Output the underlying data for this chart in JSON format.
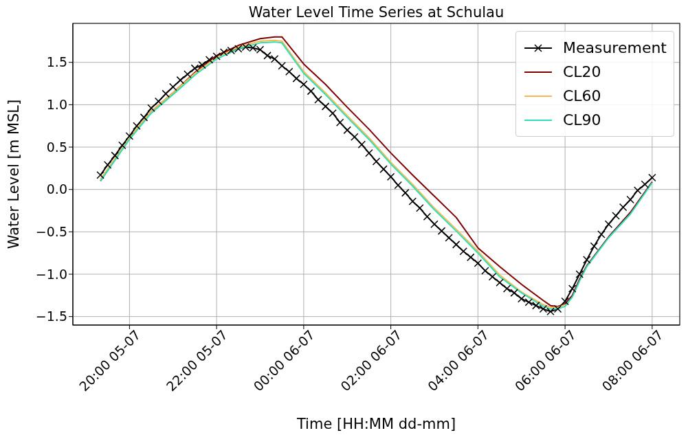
{
  "chart_data": {
    "type": "line",
    "title": "Water Level Time Series at Schulau",
    "xlabel": "Time [HH:MM dd-mm]",
    "ylabel": "Water Level [m MSL]",
    "xlim": [
      "--07-05T18:42",
      "--07-06T08:38"
    ],
    "ylim": [
      -1.6,
      1.96
    ],
    "xticks": [
      {
        "value": "--07-05T20:00",
        "label": "20:00 05-07"
      },
      {
        "value": "--07-05T22:00",
        "label": "22:00 05-07"
      },
      {
        "value": "--07-06T00:00",
        "label": "00:00 06-07"
      },
      {
        "value": "--07-06T02:00",
        "label": "02:00 06-07"
      },
      {
        "value": "--07-06T04:00",
        "label": "04:00 06-07"
      },
      {
        "value": "--07-06T06:00",
        "label": "06:00 06-07"
      },
      {
        "value": "--07-06T08:00",
        "label": "08:00 06-07"
      }
    ],
    "yticks": [
      -1.5,
      {
        "value": -1,
        "label": "−1.0"
      },
      -0.5,
      {
        "value": 0,
        "label": "0.0"
      },
      0.5,
      {
        "value": 1,
        "label": "1.0"
      },
      1.5
    ],
    "grid": true,
    "legend": "top right",
    "line_style": "solid",
    "x": [
      "--07-05T19:20",
      "--07-05T19:30",
      "--07-05T19:40",
      "--07-05T19:50",
      "--07-05T20:00",
      "--07-05T20:10",
      "--07-05T20:20",
      "--07-05T20:30",
      "--07-05T20:40",
      "--07-05T20:50",
      "--07-05T21:00",
      "--07-05T21:10",
      "--07-05T21:20",
      "--07-05T21:30",
      "--07-05T21:40",
      "--07-05T21:50",
      "--07-05T22:00",
      "--07-05T22:10",
      "--07-05T22:20",
      "--07-05T22:30",
      "--07-05T22:40",
      "--07-05T22:50",
      "--07-05T23:00",
      "--07-05T23:10",
      "--07-05T23:20",
      "--07-05T23:30",
      "--07-05T23:40",
      "--07-05T23:50",
      "--07-06T00:00",
      "--07-06T00:10",
      "--07-06T00:20",
      "--07-06T00:30",
      "--07-06T00:40",
      "--07-06T00:50",
      "--07-06T01:00",
      "--07-06T01:10",
      "--07-06T01:20",
      "--07-06T01:30",
      "--07-06T01:40",
      "--07-06T01:50",
      "--07-06T02:00",
      "--07-06T02:10",
      "--07-06T02:20",
      "--07-06T02:30",
      "--07-06T02:40",
      "--07-06T02:50",
      "--07-06T03:00",
      "--07-06T03:10",
      "--07-06T03:20",
      "--07-06T03:30",
      "--07-06T03:40",
      "--07-06T03:50",
      "--07-06T04:00",
      "--07-06T04:10",
      "--07-06T04:20",
      "--07-06T04:30",
      "--07-06T04:40",
      "--07-06T04:50",
      "--07-06T05:00",
      "--07-06T05:10",
      "--07-06T05:20",
      "--07-06T05:30",
      "--07-06T05:40",
      "--07-06T05:50",
      "--07-06T06:00",
      "--07-06T06:10",
      "--07-06T06:20",
      "--07-06T06:30",
      "--07-06T06:40",
      "--07-06T06:50",
      "--07-06T07:00",
      "--07-06T07:10",
      "--07-06T07:20",
      "--07-06T07:30",
      "--07-06T07:40",
      "--07-06T07:50",
      "--07-06T08:00"
    ],
    "series": [
      {
        "name": "Measurement",
        "color": "#000000",
        "marker": "cross",
        "values": [
          0.17,
          0.29,
          0.4,
          0.52,
          0.63,
          0.75,
          0.85,
          0.96,
          1.04,
          1.13,
          1.21,
          1.29,
          1.36,
          1.43,
          1.47,
          1.53,
          1.57,
          1.62,
          1.64,
          1.66,
          1.68,
          1.67,
          1.65,
          1.58,
          1.54,
          1.46,
          1.39,
          1.31,
          1.24,
          1.16,
          1.06,
          0.98,
          0.9,
          0.79,
          0.7,
          0.62,
          0.53,
          0.43,
          0.33,
          0.24,
          0.15,
          0.05,
          -0.04,
          -0.14,
          -0.22,
          -0.32,
          -0.41,
          -0.49,
          -0.57,
          -0.65,
          -0.73,
          -0.8,
          -0.87,
          -0.96,
          -1.03,
          -1.1,
          -1.17,
          -1.22,
          -1.29,
          -1.33,
          -1.37,
          -1.41,
          -1.44,
          -1.41,
          -1.32,
          -1.17,
          -1.0,
          -0.83,
          -0.67,
          -0.53,
          -0.41,
          -0.31,
          -0.21,
          -0.12,
          -0.01,
          0.06,
          0.14
        ]
      },
      {
        "name": "CL20",
        "color": "#800000",
        "marker": "none",
        "x": [
          "--07-05T19:20",
          "--07-05T20:00",
          "--07-05T20:30",
          "--07-05T21:00",
          "--07-05T21:30",
          "--07-05T22:00",
          "--07-05T22:30",
          "--07-05T23:00",
          "--07-05T23:20",
          "--07-05T23:30",
          "--07-06T00:00",
          "--07-06T00:30",
          "--07-06T01:00",
          "--07-06T01:30",
          "--07-06T02:00",
          "--07-06T02:30",
          "--07-06T03:00",
          "--07-06T03:30",
          "--07-06T04:00",
          "--07-06T04:30",
          "--07-06T05:00",
          "--07-06T05:30",
          "--07-06T05:40",
          "--07-06T05:50",
          "--07-06T06:00",
          "--07-06T06:10",
          "--07-06T06:20",
          "--07-06T06:30",
          "--07-06T07:00",
          "--07-06T07:30",
          "--07-06T08:00"
        ],
        "values": [
          0.1,
          0.6,
          0.92,
          1.14,
          1.38,
          1.58,
          1.7,
          1.78,
          1.8,
          1.8,
          1.48,
          1.24,
          0.97,
          0.71,
          0.43,
          0.17,
          -0.08,
          -0.33,
          -0.69,
          -0.91,
          -1.12,
          -1.31,
          -1.37,
          -1.38,
          -1.35,
          -1.25,
          -1.06,
          -0.9,
          -0.56,
          -0.27,
          0.09
        ]
      },
      {
        "name": "CL60",
        "color": "#ffb74d",
        "marker": "none",
        "x": [
          "--07-05T19:20",
          "--07-05T20:00",
          "--07-05T20:30",
          "--07-05T21:00",
          "--07-05T21:30",
          "--07-05T22:00",
          "--07-05T22:30",
          "--07-05T23:00",
          "--07-05T23:20",
          "--07-05T23:30",
          "--07-06T00:00",
          "--07-06T00:30",
          "--07-06T01:00",
          "--07-06T01:30",
          "--07-06T02:00",
          "--07-06T02:30",
          "--07-06T03:00",
          "--07-06T03:30",
          "--07-06T04:00",
          "--07-06T04:30",
          "--07-06T05:00",
          "--07-06T05:30",
          "--07-06T05:40",
          "--07-06T05:50",
          "--07-06T06:00"
        ],
        "values": [
          0.12,
          0.61,
          0.92,
          1.14,
          1.37,
          1.56,
          1.68,
          1.75,
          1.76,
          1.75,
          1.39,
          1.14,
          0.87,
          0.61,
          0.32,
          0.06,
          -0.22,
          -0.47,
          -0.73,
          -1.01,
          -1.21,
          -1.36,
          -1.39,
          -1.39,
          -1.36
        ]
      },
      {
        "name": "CL90",
        "color": "#2de0b8",
        "marker": "none",
        "x": [
          "--07-05T19:20",
          "--07-05T20:00",
          "--07-05T20:30",
          "--07-05T21:00",
          "--07-05T21:30",
          "--07-05T22:00",
          "--07-05T22:30",
          "--07-05T23:00",
          "--07-05T23:20",
          "--07-05T23:30",
          "--07-06T00:00",
          "--07-06T00:30",
          "--07-06T01:00",
          "--07-06T01:30",
          "--07-06T02:00",
          "--07-06T02:30",
          "--07-06T03:00",
          "--07-06T03:30",
          "--07-06T04:00",
          "--07-06T04:30",
          "--07-06T05:00",
          "--07-06T05:30",
          "--07-06T05:40",
          "--07-06T05:50",
          "--07-06T06:00",
          "--07-06T06:10",
          "--07-06T06:20",
          "--07-06T06:30",
          "--07-06T07:00",
          "--07-06T07:30",
          "--07-06T08:00"
        ],
        "values": [
          0.1,
          0.59,
          0.9,
          1.12,
          1.35,
          1.54,
          1.66,
          1.73,
          1.74,
          1.73,
          1.37,
          1.12,
          0.85,
          0.59,
          0.3,
          0.04,
          -0.24,
          -0.49,
          -0.75,
          -1.03,
          -1.22,
          -1.38,
          -1.41,
          -1.41,
          -1.38,
          -1.27,
          -1.08,
          -0.91,
          -0.57,
          -0.29,
          0.08
        ]
      }
    ]
  }
}
